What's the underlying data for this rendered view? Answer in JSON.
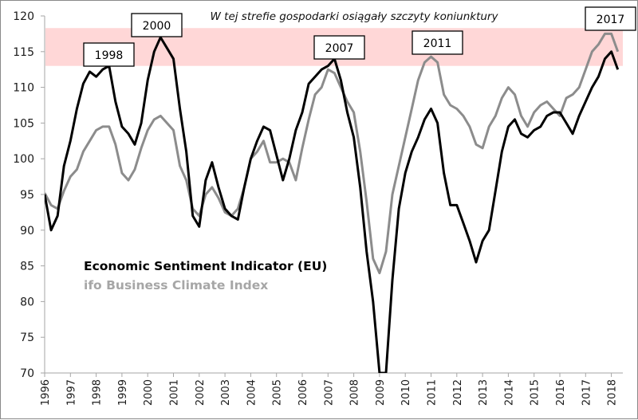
{
  "chart_data": {
    "type": "line",
    "title": "",
    "xlabel": "",
    "ylabel": "",
    "ylim": [
      70,
      120
    ],
    "yticks": [
      70,
      75,
      80,
      85,
      90,
      95,
      100,
      105,
      110,
      115,
      120
    ],
    "xlim": [
      1996,
      2018.75
    ],
    "xticks": [
      "1996",
      "1997",
      "1998",
      "1999",
      "2000",
      "2001",
      "2002",
      "2003",
      "2004",
      "2005",
      "2006",
      "2007",
      "2008",
      "2009",
      "2010",
      "2011",
      "2012",
      "2013",
      "2014",
      "2015",
      "2016",
      "2017",
      "2018"
    ],
    "grid": false,
    "legend_placement": "center-left",
    "highlight_band": {
      "from": 113,
      "to": 118.3,
      "color": "#ffd7d7",
      "label": "W tej strefie gospodarki osiągały szczyty koniunktury"
    },
    "annotations": [
      {
        "label": "1998",
        "x": 1998.5,
        "y": 113
      },
      {
        "label": "2000",
        "x": 2000.0,
        "y": 117
      },
      {
        "label": "2007",
        "x": 2007.2,
        "y": 114
      },
      {
        "label": "2011",
        "x": 2011.0,
        "y": 114.3
      },
      {
        "label": "2017",
        "x": 2017.8,
        "y": 117.7
      }
    ],
    "x": [
      1996.0,
      1996.25,
      1996.5,
      1996.75,
      1997.0,
      1997.25,
      1997.5,
      1997.75,
      1998.0,
      1998.25,
      1998.5,
      1998.75,
      1999.0,
      1999.25,
      1999.5,
      1999.75,
      2000.0,
      2000.25,
      2000.5,
      2000.75,
      2001.0,
      2001.25,
      2001.5,
      2001.75,
      2002.0,
      2002.25,
      2002.5,
      2002.75,
      2003.0,
      2003.25,
      2003.5,
      2003.75,
      2004.0,
      2004.25,
      2004.5,
      2004.75,
      2005.0,
      2005.25,
      2005.5,
      2005.75,
      2006.0,
      2006.25,
      2006.5,
      2006.75,
      2007.0,
      2007.25,
      2007.5,
      2007.75,
      2008.0,
      2008.25,
      2008.5,
      2008.75,
      2009.0,
      2009.25,
      2009.5,
      2009.75,
      2010.0,
      2010.25,
      2010.5,
      2010.75,
      2011.0,
      2011.25,
      2011.5,
      2011.75,
      2012.0,
      2012.25,
      2012.5,
      2012.75,
      2013.0,
      2013.25,
      2013.5,
      2013.75,
      2014.0,
      2014.25,
      2014.5,
      2014.75,
      2015.0,
      2015.25,
      2015.5,
      2015.75,
      2016.0,
      2016.25,
      2016.5,
      2016.75,
      2017.0,
      2017.25,
      2017.5,
      2017.75,
      2018.0,
      2018.25
    ],
    "series": [
      {
        "name": "Economic Sentiment Indicator (EU)",
        "color": "#000000",
        "values": [
          95.0,
          90.0,
          92.0,
          99.0,
          102.5,
          107.0,
          110.5,
          112.2,
          111.5,
          112.5,
          113.0,
          108.0,
          104.5,
          103.5,
          102.0,
          105.0,
          111.0,
          115.0,
          117.0,
          115.5,
          114.0,
          107.0,
          101.0,
          92.0,
          90.5,
          97.0,
          99.5,
          96.0,
          93.0,
          92.0,
          91.5,
          96.0,
          100.0,
          102.5,
          104.5,
          104.0,
          100.5,
          97.0,
          100.0,
          104.0,
          106.5,
          110.5,
          111.5,
          112.5,
          113.0,
          114.0,
          111.0,
          106.5,
          103.0,
          96.0,
          87.0,
          80.0,
          70.0,
          70.0,
          83.0,
          93.0,
          98.0,
          101.0,
          103.0,
          105.5,
          107.0,
          105.0,
          98.0,
          93.5,
          93.5,
          91.0,
          88.5,
          85.5,
          88.5,
          90.0,
          95.5,
          101.0,
          104.5,
          105.5,
          103.5,
          103.0,
          104.0,
          104.5,
          106.0,
          106.5,
          106.5,
          105.0,
          103.5,
          106.0,
          108.0,
          110.0,
          111.5,
          114.0,
          115.0,
          112.5
        ]
      },
      {
        "name": "ifo Business Climate Index",
        "color": "#8c8c8c",
        "values": [
          95.2,
          93.5,
          93.0,
          95.5,
          97.5,
          98.5,
          101.0,
          102.5,
          104.0,
          104.5,
          104.5,
          102.0,
          98.0,
          97.0,
          98.5,
          101.5,
          104.0,
          105.5,
          106.0,
          105.0,
          104.0,
          99.0,
          97.0,
          93.0,
          92.0,
          95.0,
          96.0,
          94.5,
          92.5,
          92.0,
          93.0,
          96.0,
          100.0,
          101.0,
          102.5,
          99.5,
          99.5,
          100.0,
          99.5,
          97.0,
          101.5,
          105.5,
          109.0,
          110.0,
          112.5,
          112.0,
          110.0,
          108.0,
          106.5,
          101.0,
          94.0,
          86.0,
          84.0,
          87.0,
          95.0,
          99.0,
          103.0,
          107.0,
          111.0,
          113.5,
          114.3,
          113.5,
          109.0,
          107.5,
          107.0,
          106.0,
          104.5,
          102.0,
          101.5,
          104.5,
          106.0,
          108.5,
          110.0,
          109.0,
          106.0,
          104.5,
          106.5,
          107.5,
          108.0,
          107.0,
          106.0,
          108.5,
          109.0,
          110.0,
          112.5,
          115.0,
          116.0,
          117.5,
          117.5,
          115.0
        ]
      }
    ]
  }
}
